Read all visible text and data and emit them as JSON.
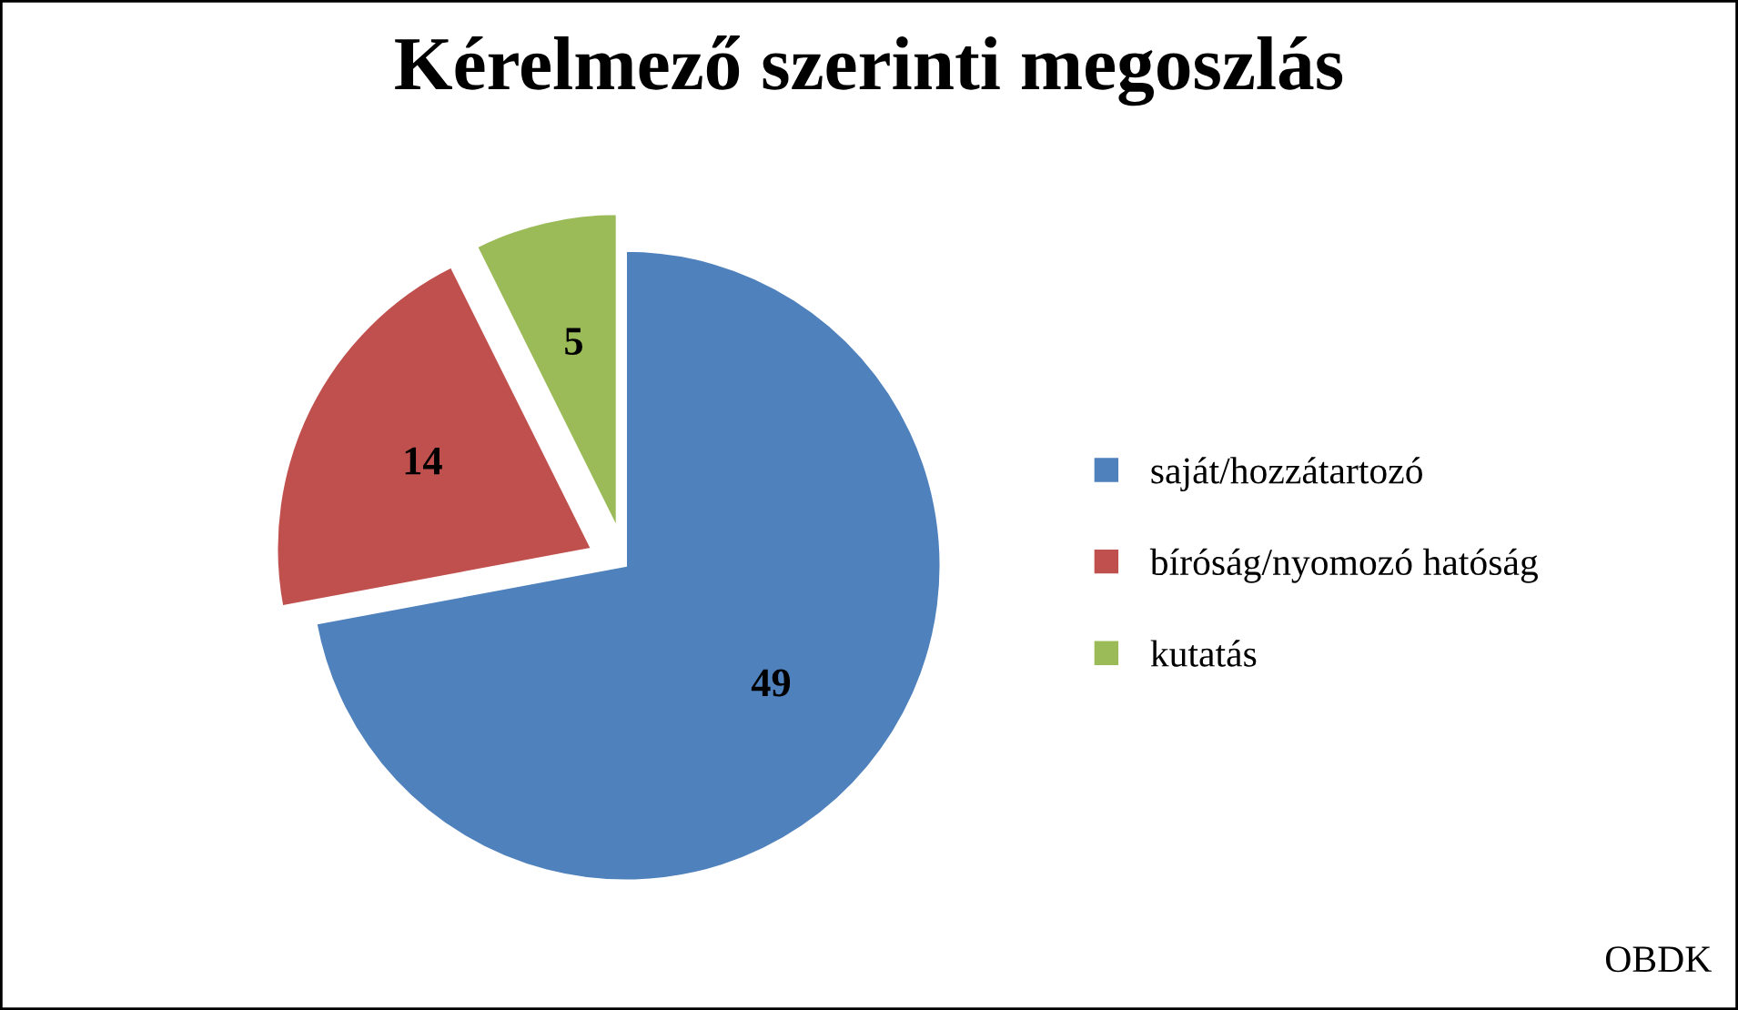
{
  "chart_data": {
    "type": "pie",
    "title": "Kérelmező szerinti megoszlás",
    "categories": [
      "saját/hozzátartozó",
      "bíróság/nyomozó hatóság",
      "kutatás"
    ],
    "values": [
      49,
      14,
      5
    ],
    "colors": [
      "#4f81bd",
      "#c0504d",
      "#9bbb59"
    ],
    "data_labels": true,
    "legend": "right",
    "annotations": [
      "OBDK"
    ]
  }
}
